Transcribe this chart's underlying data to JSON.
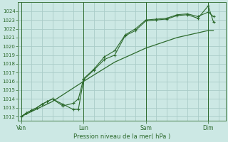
{
  "background_color": "#cce8e4",
  "grid_color": "#aaccc8",
  "line_color": "#2d6a2d",
  "title": "Pression niveau de la mer( hPa )",
  "ylim": [
    1011.5,
    1025.0
  ],
  "yticks": [
    1012,
    1013,
    1014,
    1015,
    1016,
    1017,
    1018,
    1019,
    1020,
    1021,
    1022,
    1023,
    1024
  ],
  "xtick_labels": [
    "Ven",
    "Lun",
    "Sam",
    "Dim"
  ],
  "xtick_positions": [
    0,
    36,
    72,
    108
  ],
  "xlim": [
    -2,
    118
  ],
  "series1_x": [
    0,
    3,
    6,
    9,
    12,
    15,
    18,
    24,
    30,
    33,
    36,
    42,
    48,
    54,
    60,
    66,
    72,
    78,
    84,
    90,
    96,
    102,
    108,
    111
  ],
  "series1_y": [
    1012.0,
    1012.4,
    1012.7,
    1013.0,
    1013.4,
    1013.7,
    1014.0,
    1013.4,
    1012.8,
    1012.8,
    1016.2,
    1017.3,
    1018.5,
    1019.0,
    1021.2,
    1021.8,
    1022.9,
    1023.0,
    1023.1,
    1023.5,
    1023.6,
    1023.2,
    1024.6,
    1022.8
  ],
  "series2_x": [
    0,
    3,
    6,
    9,
    12,
    15,
    18,
    24,
    30,
    33,
    36,
    42,
    48,
    54,
    60,
    66,
    72,
    78,
    84,
    90,
    96,
    102,
    108,
    111
  ],
  "series2_y": [
    1012.0,
    1012.4,
    1012.7,
    1013.0,
    1013.4,
    1013.7,
    1014.0,
    1013.2,
    1013.5,
    1014.0,
    1016.3,
    1017.4,
    1018.8,
    1019.5,
    1021.3,
    1022.0,
    1023.0,
    1023.1,
    1023.2,
    1023.6,
    1023.7,
    1023.4,
    1023.9,
    1023.4
  ],
  "series3_x": [
    0,
    18,
    36,
    54,
    72,
    90,
    108,
    111
  ],
  "series3_y": [
    1012.0,
    1013.7,
    1016.0,
    1018.2,
    1019.8,
    1021.0,
    1021.8,
    1021.8
  ]
}
